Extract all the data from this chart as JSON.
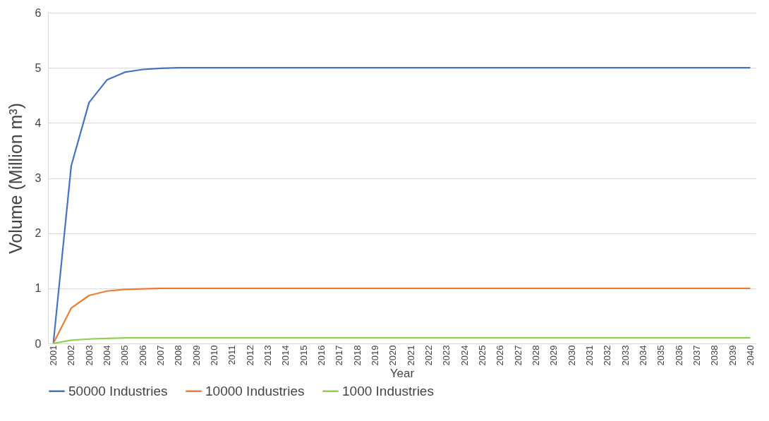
{
  "chart_data": {
    "type": "line",
    "xlabel": "Year",
    "ylabel": "Volume (Million m³)",
    "categories": [
      "2001",
      "2002",
      "2003",
      "2004",
      "2005",
      "2006",
      "2007",
      "2008",
      "2009",
      "2010",
      "2011",
      "2012",
      "2013",
      "2014",
      "2015",
      "2016",
      "2017",
      "2018",
      "2019",
      "2020",
      "2021",
      "2022",
      "2023",
      "2024",
      "2025",
      "2026",
      "2027",
      "2028",
      "2029",
      "2030",
      "2031",
      "2032",
      "2033",
      "2034",
      "2035",
      "2036",
      "2037",
      "2038",
      "2039",
      "2040"
    ],
    "series": [
      {
        "name": "50000 Industries",
        "color": "#4472c4",
        "values": [
          0,
          3.22,
          4.37,
          4.78,
          4.92,
          4.97,
          4.99,
          5,
          5,
          5,
          5,
          5,
          5,
          5,
          5,
          5,
          5,
          5,
          5,
          5,
          5,
          5,
          5,
          5,
          5,
          5,
          5,
          5,
          5,
          5,
          5,
          5,
          5,
          5,
          5,
          5,
          5,
          5,
          5,
          5
        ]
      },
      {
        "name": "10000 Industries",
        "color": "#ed7d31",
        "values": [
          0,
          0.64,
          0.87,
          0.95,
          0.98,
          0.99,
          1,
          1,
          1,
          1,
          1,
          1,
          1,
          1,
          1,
          1,
          1,
          1,
          1,
          1,
          1,
          1,
          1,
          1,
          1,
          1,
          1,
          1,
          1,
          1,
          1,
          1,
          1,
          1,
          1,
          1,
          1,
          1,
          1,
          1
        ]
      },
      {
        "name": "1000 Industries",
        "color": "#92d050",
        "values": [
          0,
          0.06,
          0.08,
          0.09,
          0.1,
          0.1,
          0.1,
          0.1,
          0.1,
          0.1,
          0.1,
          0.1,
          0.1,
          0.1,
          0.1,
          0.1,
          0.1,
          0.1,
          0.1,
          0.1,
          0.1,
          0.1,
          0.1,
          0.1,
          0.1,
          0.1,
          0.1,
          0.1,
          0.1,
          0.1,
          0.1,
          0.1,
          0.1,
          0.1,
          0.1,
          0.1,
          0.1,
          0.1,
          0.1,
          0.1
        ]
      }
    ],
    "ylim": [
      0,
      6
    ],
    "yticks": [
      0,
      1,
      2,
      3,
      4,
      5,
      6
    ],
    "grid": "y",
    "legend": "bottom",
    "marker": "none",
    "line_style": "solid"
  }
}
